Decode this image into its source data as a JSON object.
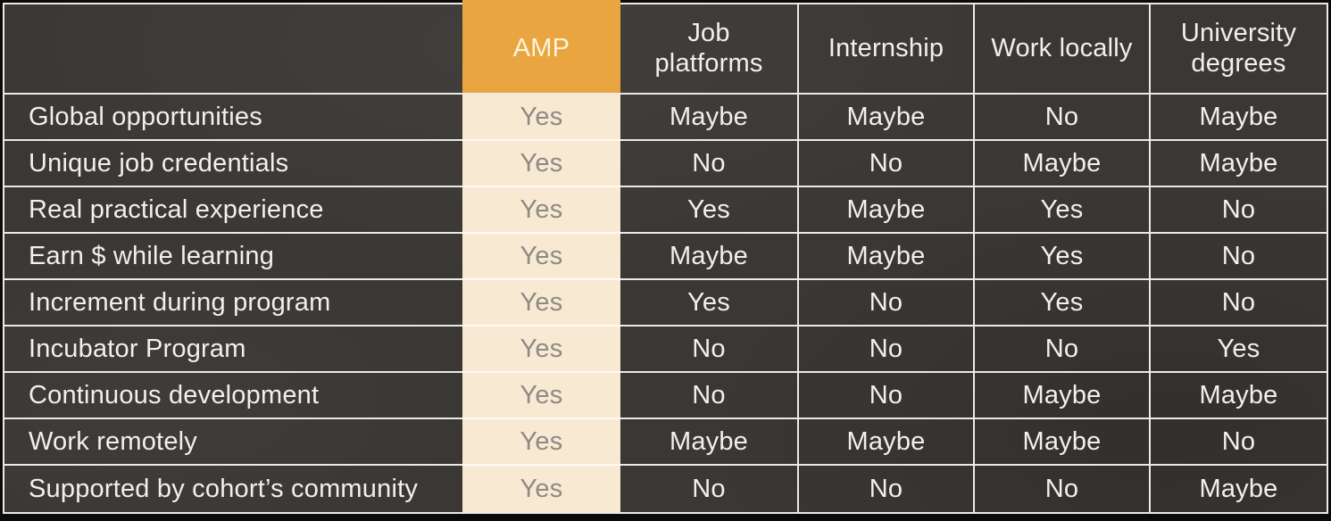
{
  "colors": {
    "background": "#3a3735",
    "frame": "#0b0b0b",
    "grid_line": "#eceae4",
    "amp_header_bg": "#e9a640",
    "amp_column_bg": "#f8e9d3",
    "amp_header_text": "#fdf3da",
    "amp_value_text": "#8e8a84",
    "text_light": "#f2f0eb"
  },
  "table": {
    "columns": [
      {
        "id": "features",
        "label": ""
      },
      {
        "id": "amp",
        "label": "AMP",
        "highlighted": true
      },
      {
        "id": "job-platforms",
        "label": "Job\nplatforms"
      },
      {
        "id": "internship",
        "label": "Internship"
      },
      {
        "id": "work-locally",
        "label": "Work locally"
      },
      {
        "id": "university-degrees",
        "label": "University\ndegrees"
      }
    ],
    "rows": [
      {
        "label": "Global opportunities",
        "values": [
          "Yes",
          "Maybe",
          "Maybe",
          "No",
          "Maybe"
        ]
      },
      {
        "label": "Unique job credentials",
        "values": [
          "Yes",
          "No",
          "No",
          "Maybe",
          "Maybe"
        ]
      },
      {
        "label": "Real practical experience",
        "values": [
          "Yes",
          "Yes",
          "Maybe",
          "Yes",
          "No"
        ]
      },
      {
        "label": "Earn $ while learning",
        "values": [
          "Yes",
          "Maybe",
          "Maybe",
          "Yes",
          "No"
        ]
      },
      {
        "label": "Increment during program",
        "values": [
          "Yes",
          "Yes",
          "No",
          "Yes",
          "No"
        ]
      },
      {
        "label": "Incubator Program",
        "values": [
          "Yes",
          "No",
          "No",
          "No",
          "Yes"
        ]
      },
      {
        "label": "Continuous development",
        "values": [
          "Yes",
          "No",
          "No",
          "Maybe",
          "Maybe"
        ]
      },
      {
        "label": "Work remotely",
        "values": [
          "Yes",
          "Maybe",
          "Maybe",
          "Maybe",
          "No"
        ]
      },
      {
        "label": "Supported by cohort’s community",
        "values": [
          "Yes",
          "No",
          "No",
          "No",
          "Maybe"
        ]
      }
    ]
  },
  "chart_data": {
    "type": "table",
    "title": "",
    "highlighted_column": "AMP",
    "columns": [
      "",
      "AMP",
      "Job platforms",
      "Internship",
      "Work locally",
      "University degrees"
    ],
    "rows": [
      [
        "Global opportunities",
        "Yes",
        "Maybe",
        "Maybe",
        "No",
        "Maybe"
      ],
      [
        "Unique job credentials",
        "Yes",
        "No",
        "No",
        "Maybe",
        "Maybe"
      ],
      [
        "Real practical experience",
        "Yes",
        "Yes",
        "Maybe",
        "Yes",
        "No"
      ],
      [
        "Earn $ while learning",
        "Yes",
        "Maybe",
        "Maybe",
        "Yes",
        "No"
      ],
      [
        "Increment during program",
        "Yes",
        "Yes",
        "No",
        "Yes",
        "No"
      ],
      [
        "Incubator Program",
        "Yes",
        "No",
        "No",
        "No",
        "Yes"
      ],
      [
        "Continuous development",
        "Yes",
        "No",
        "No",
        "Maybe",
        "Maybe"
      ],
      [
        "Work remotely",
        "Yes",
        "Maybe",
        "Maybe",
        "Maybe",
        "No"
      ],
      [
        "Supported by cohort’s community",
        "Yes",
        "No",
        "No",
        "No",
        "Maybe"
      ]
    ]
  }
}
